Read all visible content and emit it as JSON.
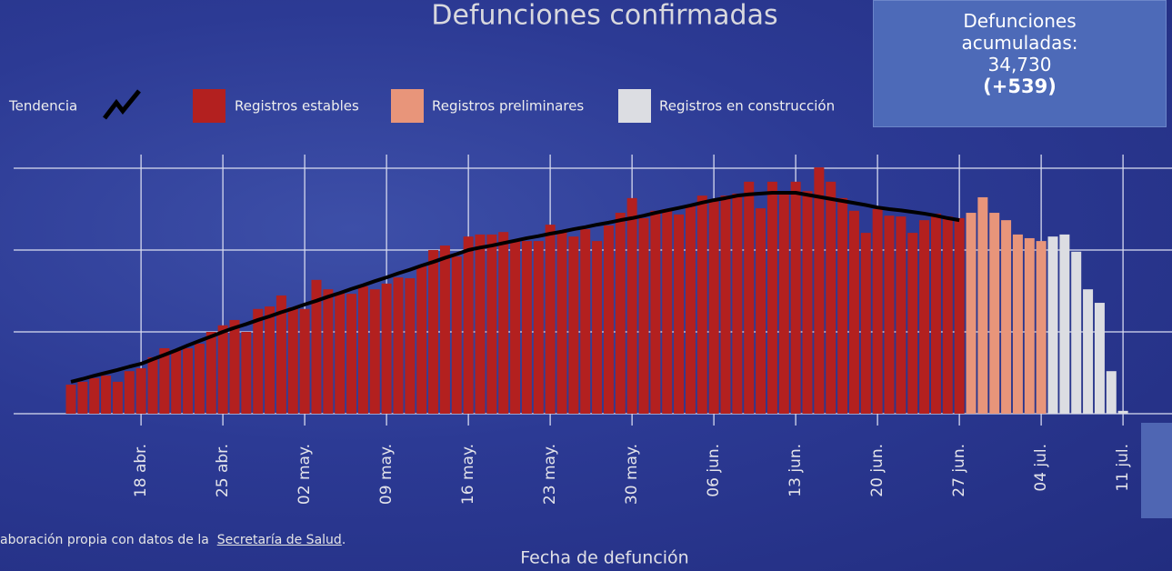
{
  "chart_data": {
    "type": "bar",
    "title": "Defunciones confirmadas",
    "x_label": "Fecha de defunción",
    "categories": [
      null,
      null,
      null,
      null,
      null,
      null,
      "18 abr.",
      null,
      null,
      null,
      null,
      null,
      null,
      "25 abr.",
      null,
      null,
      null,
      null,
      null,
      null,
      "02 may.",
      null,
      null,
      null,
      null,
      null,
      null,
      "09 may.",
      null,
      null,
      null,
      null,
      null,
      null,
      "16 may.",
      null,
      null,
      null,
      null,
      null,
      null,
      "23 may.",
      null,
      null,
      null,
      null,
      null,
      null,
      "30 may.",
      null,
      null,
      null,
      null,
      null,
      null,
      "06 jun.",
      null,
      null,
      null,
      null,
      null,
      null,
      "13 jun.",
      null,
      null,
      null,
      null,
      null,
      null,
      "20 jun.",
      null,
      null,
      null,
      null,
      null,
      null,
      "27 jun.",
      null,
      null,
      null,
      null,
      null,
      null,
      "04 jul.",
      null,
      null,
      null,
      null,
      null,
      null,
      "11 jul."
    ],
    "series": [
      {
        "name": "Registros estables",
        "color": "#b3201f",
        "values": [
          71,
          78,
          87,
          93,
          78,
          104,
          111,
          138,
          160,
          156,
          160,
          171,
          200,
          216,
          229,
          200,
          256,
          262,
          289,
          260,
          256,
          327,
          304,
          296,
          293,
          311,
          304,
          318,
          333,
          331,
          360,
          400,
          411,
          384,
          433,
          438,
          438,
          444,
          424,
          422,
          422,
          462,
          444,
          433,
          451,
          422,
          460,
          491,
          527,
          478,
          496,
          500,
          487,
          511,
          533,
          522,
          533,
          538,
          567,
          502,
          567,
          544,
          567,
          544,
          602,
          567,
          527,
          496,
          442,
          500,
          484,
          482,
          442,
          473,
          489,
          482,
          478,
          null,
          null,
          null,
          null,
          null,
          null,
          null,
          null,
          null,
          null,
          null,
          null,
          null,
          null
        ]
      },
      {
        "name": "Registros preliminares",
        "color": "#e8957a",
        "values": [
          null,
          null,
          null,
          null,
          null,
          null,
          null,
          null,
          null,
          null,
          null,
          null,
          null,
          null,
          null,
          null,
          null,
          null,
          null,
          null,
          null,
          null,
          null,
          null,
          null,
          null,
          null,
          null,
          null,
          null,
          null,
          null,
          null,
          null,
          null,
          null,
          null,
          null,
          null,
          null,
          null,
          null,
          null,
          null,
          null,
          null,
          null,
          null,
          null,
          null,
          null,
          null,
          null,
          null,
          null,
          null,
          null,
          null,
          null,
          null,
          null,
          null,
          null,
          null,
          null,
          null,
          null,
          null,
          null,
          null,
          null,
          null,
          null,
          null,
          null,
          null,
          null,
          491,
          529,
          491,
          473,
          438,
          429,
          422,
          null,
          null,
          null,
          null,
          null,
          null,
          null
        ]
      },
      {
        "name": "Registros en construcción",
        "color": "#dcdde2",
        "values": [
          null,
          null,
          null,
          null,
          null,
          null,
          null,
          null,
          null,
          null,
          null,
          null,
          null,
          null,
          null,
          null,
          null,
          null,
          null,
          null,
          null,
          null,
          null,
          null,
          null,
          null,
          null,
          null,
          null,
          null,
          null,
          null,
          null,
          null,
          null,
          null,
          null,
          null,
          null,
          null,
          null,
          null,
          null,
          null,
          null,
          null,
          null,
          null,
          null,
          null,
          null,
          null,
          null,
          null,
          null,
          null,
          null,
          null,
          null,
          null,
          null,
          null,
          null,
          null,
          null,
          null,
          null,
          null,
          null,
          null,
          null,
          null,
          null,
          null,
          null,
          null,
          null,
          null,
          null,
          null,
          null,
          null,
          null,
          null,
          433,
          438,
          396,
          304,
          271,
          104,
          7
        ]
      }
    ],
    "trend": {
      "name": "Tendencia",
      "color": "#000000",
      "values": [
        78,
        85,
        93,
        100,
        107,
        115,
        122,
        133,
        144,
        155,
        167,
        178,
        189,
        200,
        210,
        219,
        229,
        238,
        248,
        257,
        267,
        276,
        286,
        295,
        305,
        314,
        324,
        333,
        343,
        352,
        362,
        371,
        381,
        390,
        400,
        406,
        411,
        417,
        423,
        429,
        434,
        440,
        445,
        451,
        456,
        462,
        467,
        473,
        478,
        484,
        491,
        497,
        503,
        509,
        516,
        522,
        527,
        533,
        536,
        538,
        540,
        540,
        540,
        535,
        530,
        525,
        520,
        515,
        510,
        504,
        500,
        497,
        493,
        489,
        484,
        478,
        473,
        null,
        null,
        null,
        null,
        null,
        null,
        null,
        null,
        null,
        null,
        null,
        null,
        null,
        null
      ]
    },
    "ylim": [
      0,
      630
    ],
    "yticks": [
      0,
      200,
      400,
      600
    ],
    "grid": true
  },
  "kpi": {
    "label": "Defunciones acumuladas:",
    "value": "34,730",
    "change": "(+539)"
  },
  "source": {
    "text": "aboración propia con datos de la",
    "link": "Secretaría de Salud",
    "end": "."
  }
}
